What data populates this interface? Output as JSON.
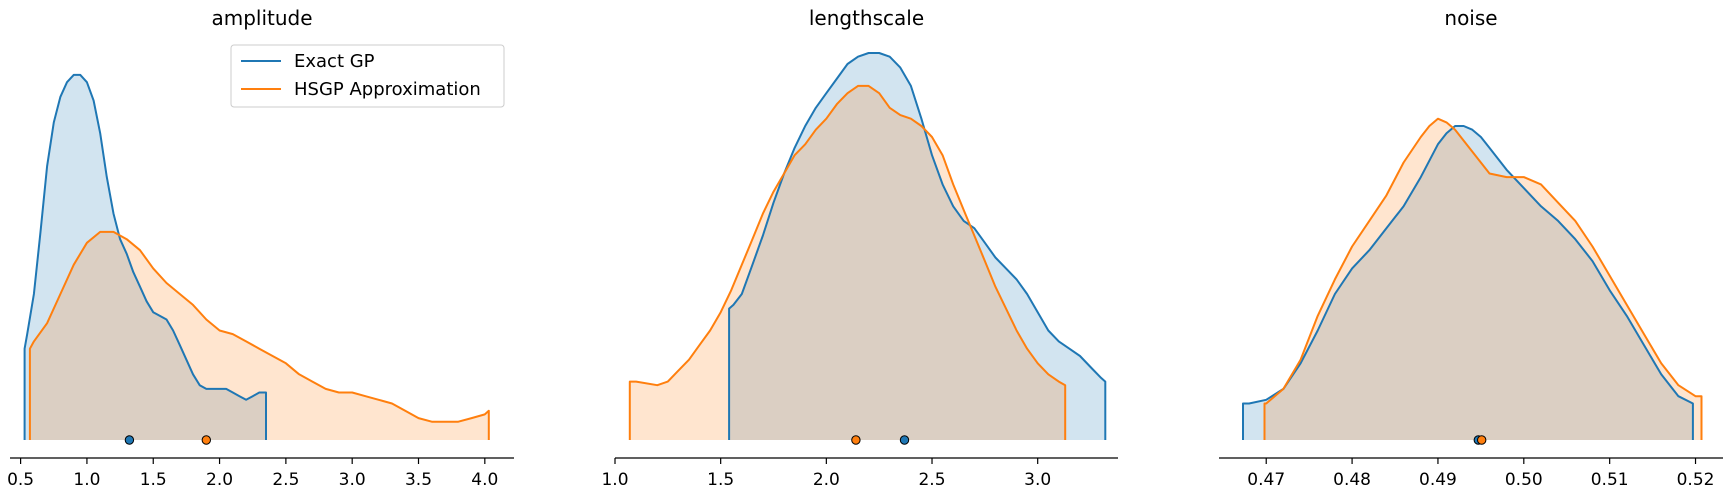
{
  "colors": {
    "exact": "#1f77b4",
    "hsgp": "#ff7f0e"
  },
  "legend": {
    "entries": [
      "Exact GP",
      "HSGP Approximation"
    ],
    "placement": "top-right of first panel"
  },
  "chart_data": [
    {
      "type": "area",
      "title": "amplitude",
      "xlabel": "",
      "ylabel": "",
      "xlim": [
        0.42,
        4.22
      ],
      "xticks": [
        "0.5",
        "1.0",
        "1.5",
        "2.0",
        "2.5",
        "3.0",
        "3.5",
        "4.0"
      ],
      "grid": false,
      "series": [
        {
          "name": "Exact GP",
          "x": [
            0.53,
            0.55,
            0.6,
            0.65,
            0.7,
            0.75,
            0.8,
            0.85,
            0.9,
            0.95,
            1.0,
            1.05,
            1.1,
            1.15,
            1.2,
            1.25,
            1.3,
            1.35,
            1.4,
            1.45,
            1.5,
            1.55,
            1.6,
            1.65,
            1.7,
            1.75,
            1.8,
            1.85,
            1.9,
            1.95,
            2.0,
            2.05,
            2.1,
            2.15,
            2.2,
            2.25,
            2.3,
            2.35
          ],
          "y": [
            0.25,
            0.29,
            0.4,
            0.57,
            0.75,
            0.87,
            0.94,
            0.98,
            1.0,
            1.0,
            0.98,
            0.93,
            0.84,
            0.72,
            0.62,
            0.55,
            0.51,
            0.46,
            0.42,
            0.38,
            0.35,
            0.34,
            0.33,
            0.3,
            0.26,
            0.22,
            0.18,
            0.15,
            0.14,
            0.14,
            0.14,
            0.14,
            0.13,
            0.12,
            0.11,
            0.12,
            0.13,
            0.13
          ],
          "mean": 1.32
        },
        {
          "name": "HSGP Approximation",
          "x": [
            0.57,
            0.6,
            0.7,
            0.8,
            0.9,
            1.0,
            1.1,
            1.2,
            1.3,
            1.4,
            1.5,
            1.6,
            1.7,
            1.8,
            1.9,
            2.0,
            2.1,
            2.2,
            2.3,
            2.4,
            2.5,
            2.6,
            2.7,
            2.8,
            2.9,
            3.0,
            3.1,
            3.2,
            3.3,
            3.4,
            3.5,
            3.6,
            3.7,
            3.8,
            3.9,
            4.0,
            4.03
          ],
          "y": [
            0.25,
            0.27,
            0.32,
            0.4,
            0.48,
            0.54,
            0.57,
            0.57,
            0.55,
            0.52,
            0.47,
            0.43,
            0.4,
            0.37,
            0.33,
            0.3,
            0.29,
            0.27,
            0.25,
            0.23,
            0.21,
            0.18,
            0.16,
            0.14,
            0.13,
            0.13,
            0.12,
            0.11,
            0.1,
            0.08,
            0.06,
            0.05,
            0.05,
            0.05,
            0.06,
            0.07,
            0.08
          ],
          "mean": 1.9
        }
      ]
    },
    {
      "type": "area",
      "title": "lengthscale",
      "xlabel": "",
      "ylabel": "",
      "xlim": [
        1.0,
        3.38
      ],
      "xticks": [
        "1.0",
        "1.5",
        "2.0",
        "2.5",
        "3.0"
      ],
      "grid": false,
      "series": [
        {
          "name": "Exact GP",
          "x": [
            1.54,
            1.56,
            1.6,
            1.65,
            1.7,
            1.75,
            1.8,
            1.85,
            1.9,
            1.95,
            2.0,
            2.05,
            2.1,
            2.15,
            2.2,
            2.25,
            2.3,
            2.35,
            2.4,
            2.45,
            2.5,
            2.55,
            2.6,
            2.65,
            2.7,
            2.75,
            2.8,
            2.85,
            2.9,
            2.95,
            3.0,
            3.05,
            3.1,
            3.15,
            3.2,
            3.25,
            3.3,
            3.32
          ],
          "y": [
            0.36,
            0.37,
            0.4,
            0.48,
            0.56,
            0.65,
            0.73,
            0.8,
            0.86,
            0.91,
            0.95,
            0.99,
            1.03,
            1.05,
            1.06,
            1.06,
            1.05,
            1.02,
            0.97,
            0.88,
            0.78,
            0.7,
            0.64,
            0.6,
            0.58,
            0.54,
            0.5,
            0.47,
            0.44,
            0.4,
            0.35,
            0.3,
            0.27,
            0.25,
            0.23,
            0.2,
            0.17,
            0.16
          ],
          "mean": 2.37
        },
        {
          "name": "HSGP Approximation",
          "x": [
            1.07,
            1.1,
            1.2,
            1.25,
            1.3,
            1.35,
            1.4,
            1.45,
            1.5,
            1.55,
            1.6,
            1.65,
            1.7,
            1.75,
            1.8,
            1.85,
            1.9,
            1.95,
            2.0,
            2.05,
            2.1,
            2.15,
            2.2,
            2.25,
            2.3,
            2.35,
            2.4,
            2.45,
            2.5,
            2.55,
            2.6,
            2.65,
            2.7,
            2.75,
            2.8,
            2.85,
            2.9,
            2.95,
            3.0,
            3.05,
            3.1,
            3.13
          ],
          "y": [
            0.16,
            0.16,
            0.15,
            0.16,
            0.19,
            0.22,
            0.26,
            0.3,
            0.35,
            0.41,
            0.48,
            0.55,
            0.62,
            0.68,
            0.73,
            0.78,
            0.81,
            0.85,
            0.88,
            0.92,
            0.95,
            0.97,
            0.97,
            0.95,
            0.91,
            0.89,
            0.88,
            0.86,
            0.83,
            0.78,
            0.7,
            0.63,
            0.56,
            0.49,
            0.42,
            0.36,
            0.3,
            0.25,
            0.21,
            0.18,
            0.16,
            0.15
          ],
          "mean": 2.14
        }
      ]
    },
    {
      "type": "area",
      "title": "noise",
      "xlabel": "",
      "ylabel": "",
      "xlim": [
        0.4645,
        0.5232
      ],
      "xticks": [
        "0.47",
        "0.48",
        "0.49",
        "0.50",
        "0.51",
        "0.52"
      ],
      "grid": false,
      "series": [
        {
          "name": "Exact GP",
          "x": [
            0.4673,
            0.468,
            0.47,
            0.472,
            0.474,
            0.476,
            0.478,
            0.48,
            0.482,
            0.484,
            0.486,
            0.488,
            0.49,
            0.491,
            0.492,
            0.493,
            0.494,
            0.495,
            0.496,
            0.498,
            0.5,
            0.502,
            0.504,
            0.506,
            0.508,
            0.51,
            0.512,
            0.514,
            0.516,
            0.518,
            0.5197
          ],
          "y": [
            0.1,
            0.1,
            0.11,
            0.14,
            0.21,
            0.3,
            0.4,
            0.47,
            0.52,
            0.58,
            0.64,
            0.72,
            0.81,
            0.84,
            0.86,
            0.86,
            0.85,
            0.83,
            0.8,
            0.74,
            0.69,
            0.64,
            0.6,
            0.55,
            0.49,
            0.41,
            0.34,
            0.26,
            0.18,
            0.12,
            0.1
          ],
          "mean": 0.4947
        },
        {
          "name": "HSGP Approximation",
          "x": [
            0.4698,
            0.47,
            0.472,
            0.474,
            0.476,
            0.478,
            0.48,
            0.482,
            0.484,
            0.486,
            0.488,
            0.489,
            0.49,
            0.491,
            0.492,
            0.494,
            0.496,
            0.498,
            0.5,
            0.502,
            0.504,
            0.506,
            0.508,
            0.51,
            0.512,
            0.514,
            0.516,
            0.518,
            0.52,
            0.5207
          ],
          "y": [
            0.1,
            0.1,
            0.14,
            0.22,
            0.34,
            0.44,
            0.53,
            0.6,
            0.67,
            0.76,
            0.83,
            0.86,
            0.88,
            0.87,
            0.85,
            0.79,
            0.73,
            0.72,
            0.72,
            0.7,
            0.65,
            0.6,
            0.53,
            0.45,
            0.37,
            0.29,
            0.21,
            0.15,
            0.12,
            0.12
          ],
          "mean": 0.4951
        }
      ]
    }
  ]
}
